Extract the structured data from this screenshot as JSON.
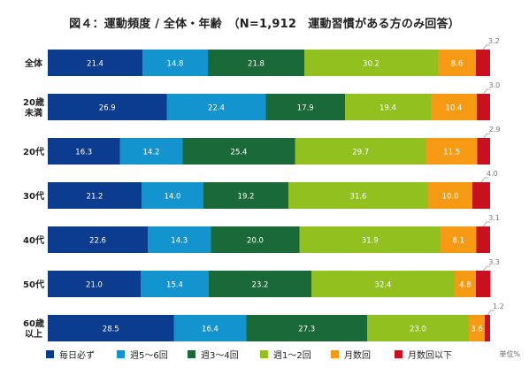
{
  "chart_data": {
    "type": "bar",
    "orientation": "horizontal",
    "stacked": true,
    "title": "図４：運動頻度 / 全体・年齢　（N=1,912　運動習慣がある方のみ回答）",
    "unit": "単位%",
    "categories": [
      [
        "全体"
      ],
      [
        "20歳",
        "未満"
      ],
      [
        "20代"
      ],
      [
        "30代"
      ],
      [
        "40代"
      ],
      [
        "50代"
      ],
      [
        "60歳",
        "以上"
      ]
    ],
    "series": [
      {
        "name": "毎日必ず",
        "color": "#0b3c8f",
        "values": [
          21.4,
          26.9,
          16.3,
          21.2,
          22.6,
          21.0,
          28.5
        ]
      },
      {
        "name": "週5～6回",
        "color": "#1394cf",
        "values": [
          14.8,
          22.4,
          14.2,
          14.0,
          14.3,
          15.4,
          16.4
        ]
      },
      {
        "name": "週3～4回",
        "color": "#1a6a39",
        "values": [
          21.8,
          17.9,
          25.4,
          19.2,
          20.0,
          23.2,
          27.3
        ]
      },
      {
        "name": "週1～2回",
        "color": "#92c11f",
        "values": [
          30.2,
          19.4,
          29.7,
          31.6,
          31.9,
          32.4,
          23.0
        ]
      },
      {
        "name": "月数回",
        "color": "#f59a12",
        "values": [
          8.6,
          10.4,
          11.5,
          10.0,
          8.1,
          4.8,
          3.6
        ]
      },
      {
        "name": "月数回以下",
        "color": "#c8101e",
        "values": [
          3.2,
          3.0,
          2.9,
          4.0,
          3.1,
          3.3,
          1.2
        ]
      }
    ],
    "legend_position": "bottom",
    "xlim": [
      0,
      100
    ]
  }
}
